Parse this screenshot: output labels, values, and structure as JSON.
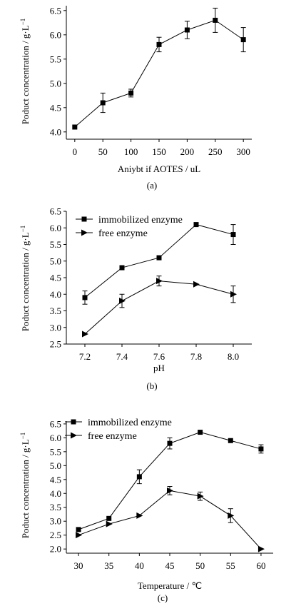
{
  "chart_data": [
    {
      "type": "line",
      "panel_label": "(a)",
      "xlabel": "Aniybt if AOTES / uL",
      "ylabel": "Poduct concentration / g·L",
      "ylabel_exp": "−1",
      "x": [
        0,
        50,
        100,
        150,
        200,
        250,
        300
      ],
      "xticks": [
        0,
        50,
        100,
        150,
        200,
        250,
        300
      ],
      "xlim": [
        -15,
        315
      ],
      "ylim": [
        3.85,
        6.6
      ],
      "yticks": [
        4.0,
        4.5,
        5.0,
        5.5,
        6.0,
        6.5
      ],
      "ytick_labels": [
        "4.0",
        "4.5",
        "5.0",
        "5.5",
        "6.0",
        "6.5"
      ],
      "legend": "none",
      "series": [
        {
          "marker": "square",
          "values": [
            4.1,
            4.6,
            4.8,
            5.8,
            6.1,
            6.3,
            5.9
          ],
          "errors": [
            0,
            0.2,
            0.08,
            0.15,
            0.18,
            0.25,
            0.25
          ]
        }
      ]
    },
    {
      "type": "line",
      "panel_label": "(b)",
      "xlabel": "pH",
      "ylabel": "Poduct concentration / g·L",
      "ylabel_exp": "−1",
      "x": [
        7.2,
        7.4,
        7.6,
        7.8,
        8.0
      ],
      "xticks": [
        7.2,
        7.4,
        7.6,
        7.8,
        8.0
      ],
      "xtick_labels": [
        "7.2",
        "7.4",
        "7.6",
        "7.8",
        "8.0"
      ],
      "xlim": [
        7.1,
        8.1
      ],
      "ylim": [
        2.5,
        6.5
      ],
      "yticks": [
        2.5,
        3.0,
        3.5,
        4.0,
        4.5,
        5.0,
        5.5,
        6.0,
        6.5
      ],
      "ytick_labels": [
        "2.5",
        "3.0",
        "3.5",
        "4.0",
        "4.5",
        "5.0",
        "5.5",
        "6.0",
        "6.5"
      ],
      "legend": "top-left",
      "series": [
        {
          "name": "immobilized enzyme",
          "marker": "square",
          "values": [
            3.9,
            4.8,
            5.1,
            6.1,
            5.8
          ],
          "errors": [
            0.2,
            0,
            0,
            0,
            0.3
          ]
        },
        {
          "name": "free enzyme",
          "marker": "triangle-right",
          "values": [
            2.8,
            3.8,
            4.4,
            4.3,
            4.0
          ],
          "errors": [
            0,
            0.2,
            0.15,
            0,
            0.25
          ]
        }
      ]
    },
    {
      "type": "line",
      "panel_label": "(c)",
      "xlabel": "Temperature / ℃",
      "ylabel": "Poduct concentration / g·L",
      "ylabel_exp": "−1",
      "x": [
        30,
        35,
        40,
        45,
        50,
        55,
        60
      ],
      "xticks": [
        30,
        35,
        40,
        45,
        50,
        55,
        60
      ],
      "xlim": [
        28,
        62
      ],
      "ylim": [
        1.85,
        6.6
      ],
      "yticks": [
        2.0,
        2.5,
        3.0,
        3.5,
        4.0,
        4.5,
        5.0,
        5.5,
        6.0,
        6.5
      ],
      "ytick_labels": [
        "2.0",
        "2.5",
        "3.0",
        "3.5",
        "4.0",
        "4.5",
        "5.0",
        "5.5",
        "6.0",
        "6.5"
      ],
      "legend": "top-left",
      "series": [
        {
          "name": "immobilized enzyme",
          "marker": "square",
          "values": [
            2.7,
            3.1,
            4.6,
            5.8,
            6.2,
            5.9,
            5.6
          ],
          "errors": [
            0,
            0,
            0.25,
            0.2,
            0,
            0,
            0.15
          ]
        },
        {
          "name": "free enzyme",
          "marker": "triangle-right",
          "values": [
            2.5,
            2.9,
            3.2,
            4.1,
            3.9,
            3.2,
            2.0
          ],
          "errors": [
            0,
            0,
            0,
            0.15,
            0.15,
            0.25,
            0
          ]
        }
      ]
    }
  ]
}
